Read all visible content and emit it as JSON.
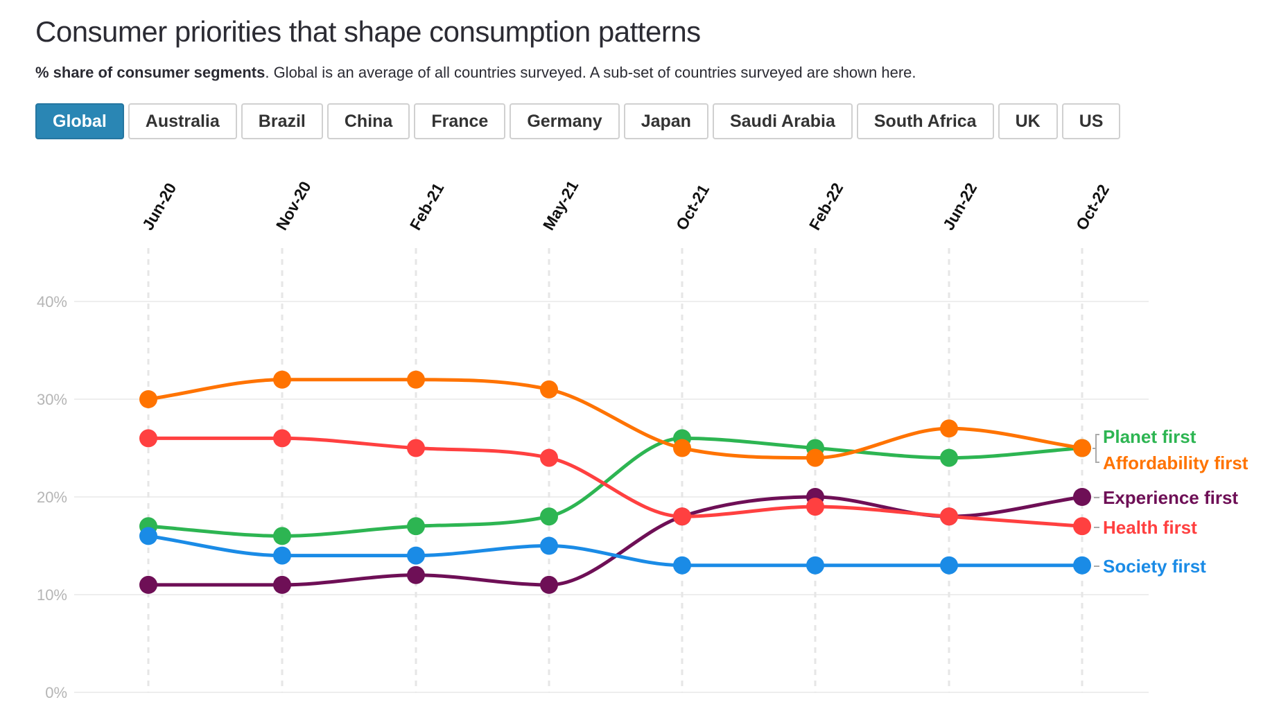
{
  "header": {
    "title": "Consumer priorities that shape consumption patterns",
    "subtitle_bold": "% share of consumer segments",
    "subtitle_rest": ". Global is an average of all countries surveyed. A sub-set of countries surveyed are shown here."
  },
  "tabs": [
    {
      "label": "Global",
      "active": true
    },
    {
      "label": "Australia"
    },
    {
      "label": "Brazil"
    },
    {
      "label": "China"
    },
    {
      "label": "France"
    },
    {
      "label": "Germany"
    },
    {
      "label": "Japan"
    },
    {
      "label": "Saudi Arabia"
    },
    {
      "label": "South Africa"
    },
    {
      "label": "UK"
    },
    {
      "label": "US"
    }
  ],
  "accent_color": "#2a86b4",
  "chart_data": {
    "type": "line",
    "x": [
      "Jun-20",
      "Nov-20",
      "Feb-21",
      "May-21",
      "Oct-21",
      "Feb-22",
      "Jun-22",
      "Oct-22"
    ],
    "ylim": [
      0,
      40
    ],
    "yticks": [
      "0%",
      "10%",
      "20%",
      "30%",
      "40%"
    ],
    "grid": true,
    "legend": "right (direct labels at line ends)",
    "series": [
      {
        "name": "Planet first",
        "color": "#2db552",
        "values": [
          17,
          16,
          17,
          18,
          26,
          25,
          24,
          25
        ]
      },
      {
        "name": "Affordability first",
        "color": "#ff7300",
        "values": [
          30,
          32,
          32,
          31,
          25,
          24,
          27,
          25
        ]
      },
      {
        "name": "Experience first",
        "color": "#6e0f56",
        "values": [
          11,
          11,
          12,
          11,
          18,
          20,
          18,
          20
        ]
      },
      {
        "name": "Health first",
        "color": "#ff4040",
        "values": [
          26,
          26,
          25,
          24,
          18,
          19,
          18,
          17
        ]
      },
      {
        "name": "Society first",
        "color": "#1a8be6",
        "values": [
          16,
          14,
          14,
          15,
          13,
          13,
          13,
          13
        ]
      }
    ]
  }
}
